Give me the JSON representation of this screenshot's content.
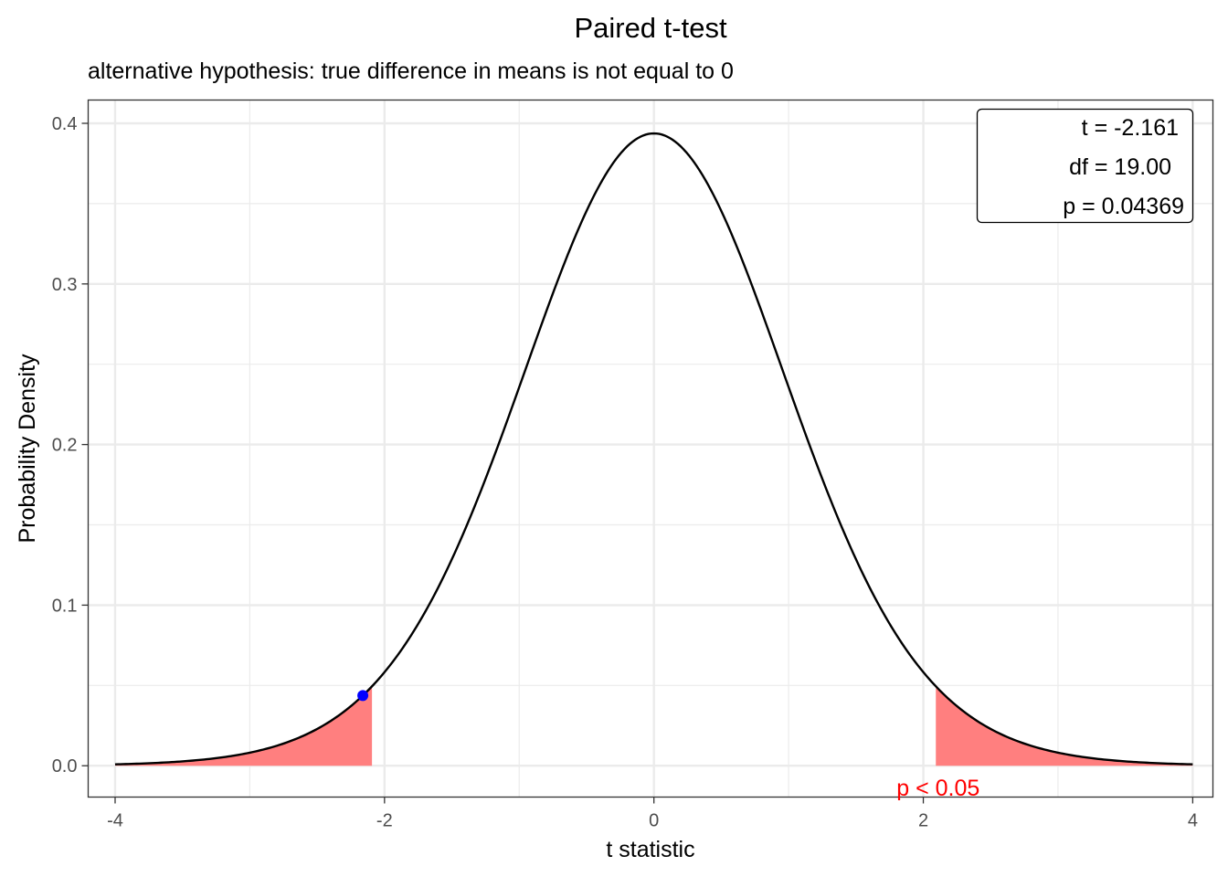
{
  "chart_data": {
    "type": "line",
    "title": "Paired t-test",
    "subtitle": "alternative hypothesis: true difference in means is not equal to 0",
    "xlabel": "t statistic",
    "ylabel": "Probability Density",
    "xlim": [
      -4.2,
      4.15
    ],
    "ylim": [
      -0.0195,
      0.4145
    ],
    "x_ticks": [
      -4,
      -2,
      0,
      2,
      4
    ],
    "x_tick_labels": [
      "-4",
      "-2",
      "0",
      "2",
      "4"
    ],
    "y_ticks": [
      0.0,
      0.1,
      0.2,
      0.3,
      0.4
    ],
    "y_tick_labels": [
      "0.0",
      "0.1",
      "0.2",
      "0.3",
      "0.4"
    ],
    "grid": true,
    "distribution": {
      "name": "t",
      "df": 19,
      "x_range": [
        -4,
        4
      ]
    },
    "rejection_region": {
      "critical_value": 2.093,
      "color": "#ff7f7f",
      "label": "p < 0.05",
      "label_x": 2.11,
      "label_y": -0.0135,
      "label_color": "#ff0000"
    },
    "observed_point": {
      "x": -2.161,
      "y": 0.0437,
      "color": "#0000ff"
    },
    "stats_box": [
      "t = -2.161",
      "df = 19.00",
      "p = 0.04369"
    ],
    "colors": {
      "curve": "#000000",
      "grid": "#ebebeb",
      "panel_border": "#333333",
      "axis_text": "#4d4d4d"
    }
  }
}
